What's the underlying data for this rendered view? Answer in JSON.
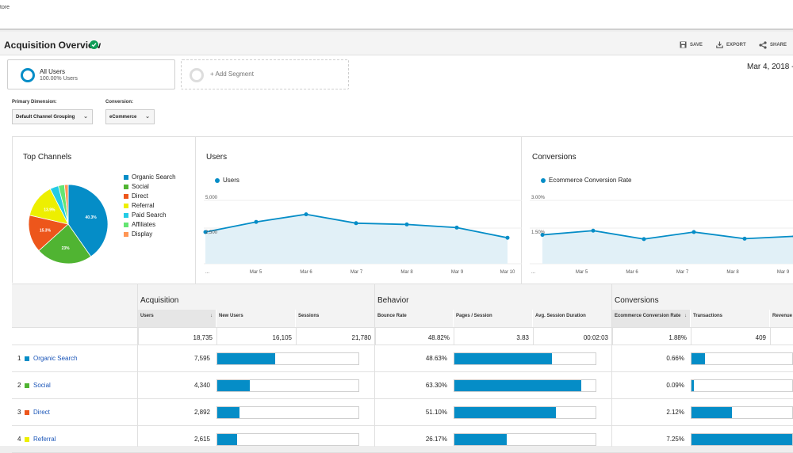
{
  "breadcrumb": "tore",
  "header": {
    "title": "Acquisition Overview",
    "save_label": "SAVE",
    "export_label": "EXPORT",
    "share_label": "SHARE"
  },
  "segments": {
    "all_users": {
      "name": "All Users",
      "sub": "100.00% Users"
    },
    "add_label": "+ Add Segment"
  },
  "date_range": "Mar 4, 2018 -",
  "dimensions": {
    "primary_label": "Primary Dimension:",
    "primary_value": "Default Channel Grouping",
    "conversion_label": "Conversion:",
    "conversion_value": "eCommerce"
  },
  "colors": {
    "organic": "#058dc7",
    "social": "#50b432",
    "direct": "#ed561b",
    "referral": "#edef00",
    "paid": "#24cbe5",
    "affiliates": "#64e572",
    "display": "#ff9655",
    "line": "#058dc7",
    "area": "#e1f0f7"
  },
  "top_channels": {
    "title": "Top Channels",
    "legend": [
      "Organic Search",
      "Social",
      "Direct",
      "Referral",
      "Paid Search",
      "Affiliates",
      "Display"
    ],
    "chart_data": {
      "type": "pie",
      "labels": [
        "Organic Search",
        "Social",
        "Direct",
        "Referral",
        "Paid Search",
        "Affiliates",
        "Display"
      ],
      "values": [
        40.3,
        23,
        15.3,
        13.9,
        3.5,
        2.5,
        1.5
      ],
      "data_labels": [
        "40.3%",
        "23%",
        "15.3%",
        "13.9%",
        "",
        "",
        ""
      ]
    }
  },
  "users_chart": {
    "title": "Users",
    "series_label": "Users",
    "y_ticks": [
      "5,000",
      "2,500"
    ],
    "x_ticks": [
      "...",
      "Mar 5",
      "Mar 6",
      "Mar 7",
      "Mar 8",
      "Mar 9",
      "Mar 10"
    ],
    "chart_data": {
      "type": "line",
      "x": [
        "Mar 4",
        "Mar 5",
        "Mar 6",
        "Mar 7",
        "Mar 8",
        "Mar 9",
        "Mar 10"
      ],
      "values": [
        2500,
        3300,
        3900,
        3200,
        3100,
        2850,
        2050
      ],
      "ylim": [
        0,
        5000
      ]
    }
  },
  "conversions_chart": {
    "title": "Conversions",
    "series_label": "Ecommerce Conversion Rate",
    "y_ticks": [
      "3.00%",
      "1.50%"
    ],
    "x_ticks": [
      "...",
      "Mar 5",
      "Mar 6",
      "Mar 7",
      "Mar 8",
      "Mar 9"
    ],
    "chart_data": {
      "type": "line",
      "x": [
        "Mar 4",
        "Mar 5",
        "Mar 6",
        "Mar 7",
        "Mar 8",
        "Mar 9",
        "Mar 10"
      ],
      "values": [
        2.05,
        2.35,
        1.75,
        2.25,
        1.78,
        1.95,
        1.7
      ],
      "ylim": [
        0,
        4.5
      ]
    }
  },
  "table": {
    "groups": [
      "Acquisition",
      "Behavior",
      "Conversions"
    ],
    "columns": [
      "Users",
      "New Users",
      "Sessions",
      "Bounce Rate",
      "Pages / Session",
      "Avg. Session Duration",
      "Ecommerce Conversion Rate",
      "Transactions",
      "Revenue"
    ],
    "totals": [
      "18,735",
      "16,105",
      "21,780",
      "48.82%",
      "3.83",
      "00:02:03",
      "1.88%",
      "409",
      ""
    ],
    "rows": [
      {
        "num": "1",
        "channel": "Organic Search",
        "users": "7,595",
        "new_users_frac": 0.41,
        "bounce": "48.63%",
        "pages_frac": 0.69,
        "conv": "0.66%",
        "trans_frac": 0.13
      },
      {
        "num": "2",
        "channel": "Social",
        "users": "4,340",
        "new_users_frac": 0.23,
        "bounce": "63.30%",
        "pages_frac": 0.9,
        "conv": "0.09%",
        "trans_frac": 0.02
      },
      {
        "num": "3",
        "channel": "Direct",
        "users": "2,892",
        "new_users_frac": 0.16,
        "bounce": "51.10%",
        "pages_frac": 0.72,
        "conv": "2.12%",
        "trans_frac": 0.4
      },
      {
        "num": "4",
        "channel": "Referral",
        "users": "2,615",
        "new_users_frac": 0.14,
        "bounce": "26.17%",
        "pages_frac": 0.37,
        "conv": "7.25%",
        "trans_frac": 1.0
      }
    ]
  }
}
